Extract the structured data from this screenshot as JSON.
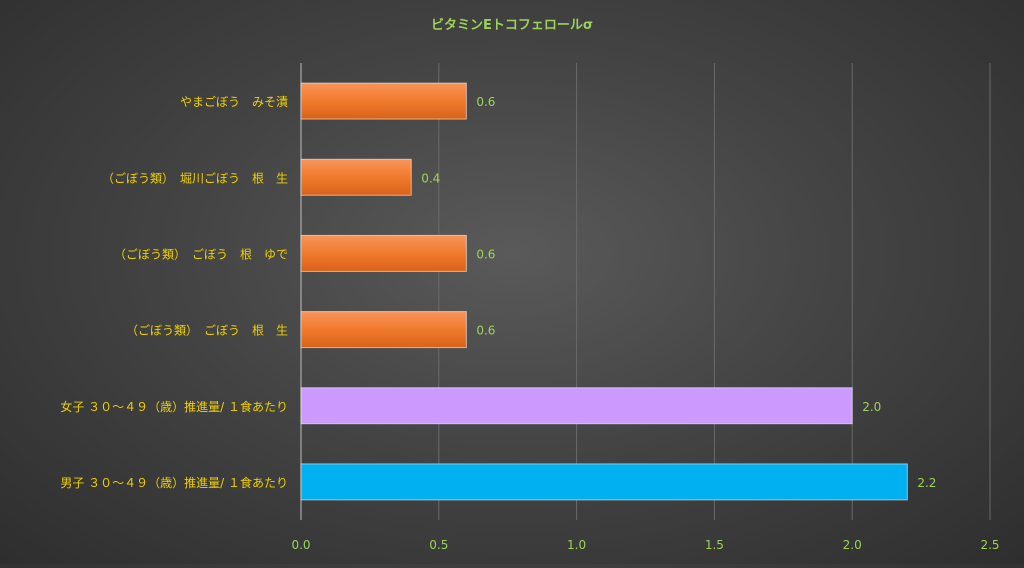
{
  "chart_data": {
    "type": "bar",
    "orientation": "horizontal",
    "title": "ビタミンEトコフェロールσ",
    "xlabel": "",
    "ylabel": "",
    "xlim": [
      0,
      2.5
    ],
    "x_ticks": [
      "0.0",
      "0.5",
      "1.0",
      "1.5",
      "2.0",
      "2.5"
    ],
    "grid": "vertical",
    "legend": "none",
    "categories": [
      "やまごぼう　みそ漬",
      "（ごぼう類）　堀川ごぼう　根　生",
      "（ごぼう類）　ごぼう　根　ゆで",
      "（ごぼう類）　ごぼう　根　生",
      "女子 ３０～４９（歳）推進量/ １食あたり",
      "男子 ３０～４９（歳）推進量/ １食あたり"
    ],
    "values": [
      0.6,
      0.4,
      0.6,
      0.6,
      2.0,
      2.2
    ],
    "value_labels": [
      "0.6",
      "0.4",
      "0.6",
      "0.6",
      "2.0",
      "2.2"
    ],
    "bar_colors": [
      "#f07a2c",
      "#f07a2c",
      "#f07a2c",
      "#f07a2c",
      "#cc99ff",
      "#00b0f0"
    ],
    "colors": {
      "title": "#9bd35a",
      "tick_labels": "#9bd35a",
      "data_labels": "#9bd35a",
      "category_labels": "#f0d000",
      "gridlines": "#6a6a6a"
    }
  }
}
